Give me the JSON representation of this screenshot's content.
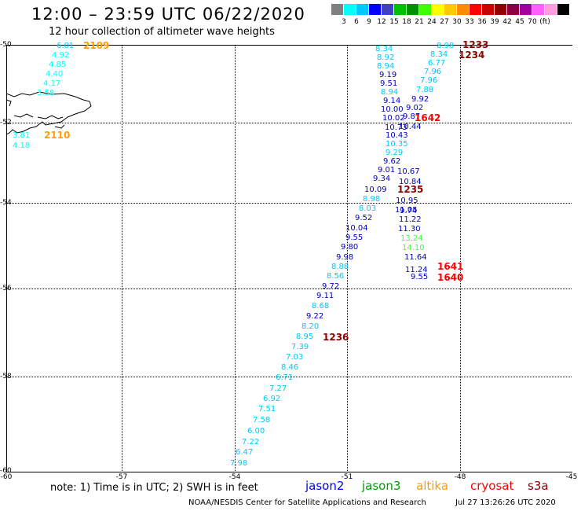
{
  "header": {
    "title": "12:00 – 23:59 UTC 06/22/2020",
    "subtitle": "12 hour collection of altimeter wave heights"
  },
  "legend": {
    "colors": [
      "#808080",
      "#00ffff",
      "#00c8ff",
      "#0000ff",
      "#4040c0",
      "#00c000",
      "#009000",
      "#40ff00",
      "#ffff00",
      "#ffc800",
      "#ff8c00",
      "#ff0000",
      "#c80000",
      "#900000",
      "#8b0040",
      "#a000a0",
      "#ff60ff",
      "#ff9ce0",
      "#000000"
    ],
    "ticks": [
      "3",
      "6",
      "9",
      "12",
      "15",
      "18",
      "21",
      "24",
      "27",
      "30",
      "33",
      "36",
      "39",
      "42",
      "45",
      "70",
      "(ft)"
    ]
  },
  "axes": {
    "y_labels": [
      "-50",
      "-52",
      "-54",
      "-56",
      "-58",
      "-60"
    ],
    "x_labels": [
      "-60",
      "-57",
      "-54",
      "-51",
      "-48",
      "-45"
    ]
  },
  "values": [
    {
      "t": "6.01",
      "c": "#00c8ff"
    },
    {
      "t": "4.92",
      "c": "#00ffff"
    },
    {
      "t": "4.85",
      "c": "#00ffff"
    },
    {
      "t": "4.40",
      "c": "#00ffff"
    },
    {
      "t": "4.17",
      "c": "#00ffff"
    },
    {
      "t": "3.58",
      "c": "#00ffff"
    },
    {
      "t": "3.81",
      "c": "#00ffff"
    },
    {
      "t": "4.18",
      "c": "#00ffff"
    },
    {
      "t": "8.34",
      "c": "#00c8ff"
    },
    {
      "t": "8.92",
      "c": "#00c8ff"
    },
    {
      "t": "8.94",
      "c": "#00c8ff"
    },
    {
      "t": "9.19",
      "c": "#0000c0"
    },
    {
      "t": "9.51",
      "c": "#0000c0"
    },
    {
      "t": "8.94",
      "c": "#00c8ff"
    },
    {
      "t": "9.14",
      "c": "#0000c0"
    },
    {
      "t": "10.00",
      "c": "#0000c0"
    },
    {
      "t": "10.02",
      "c": "#0000c0"
    },
    {
      "t": "10.44",
      "c": "#0000c0"
    },
    {
      "t": "10.43",
      "c": "#0000c0"
    },
    {
      "t": "10.35",
      "c": "#00c8ff"
    },
    {
      "t": "9.29",
      "c": "#00c8ff"
    },
    {
      "t": "9.62",
      "c": "#0000c0"
    },
    {
      "t": "9.01",
      "c": "#0000c0"
    },
    {
      "t": "9.34",
      "c": "#0000c0"
    },
    {
      "t": "10.09",
      "c": "#0000c0"
    },
    {
      "t": "8.98",
      "c": "#00c8ff"
    },
    {
      "t": "8.03",
      "c": "#00c8ff"
    },
    {
      "t": "9.52",
      "c": "#0000c0"
    },
    {
      "t": "10.04",
      "c": "#0000c0"
    },
    {
      "t": "9.55",
      "c": "#0000c0"
    },
    {
      "t": "9.80",
      "c": "#0000c0"
    },
    {
      "t": "9.98",
      "c": "#0000c0"
    },
    {
      "t": "8.88",
      "c": "#00c8ff"
    },
    {
      "t": "8.56",
      "c": "#00c8ff"
    },
    {
      "t": "9.72",
      "c": "#0000c0"
    },
    {
      "t": "9.11",
      "c": "#0000c0"
    },
    {
      "t": "8.68",
      "c": "#00c8ff"
    },
    {
      "t": "9.22",
      "c": "#0000c0"
    },
    {
      "t": "8.20",
      "c": "#00c8ff"
    },
    {
      "t": "8.95",
      "c": "#00c8ff"
    },
    {
      "t": "7.39",
      "c": "#00c8ff"
    },
    {
      "t": "7.03",
      "c": "#00c8ff"
    },
    {
      "t": "8.46",
      "c": "#00c8ff"
    },
    {
      "t": "6.71",
      "c": "#00c8ff"
    },
    {
      "t": "7.27",
      "c": "#00c8ff"
    },
    {
      "t": "6.92",
      "c": "#00c8ff"
    },
    {
      "t": "7.51",
      "c": "#00c8ff"
    },
    {
      "t": "7.58",
      "c": "#00c8ff"
    },
    {
      "t": "6.00",
      "c": "#00c8ff"
    },
    {
      "t": "7.22",
      "c": "#00c8ff"
    },
    {
      "t": "6.47",
      "c": "#00c8ff"
    },
    {
      "t": "7.98",
      "c": "#00c8ff"
    },
    {
      "t": "8.98",
      "c": "#00c8ff"
    },
    {
      "t": "8.34",
      "c": "#00c8ff"
    },
    {
      "t": "6.77",
      "c": "#00c8ff"
    },
    {
      "t": "7.96",
      "c": "#00c8ff"
    },
    {
      "t": "7.96",
      "c": "#00c8ff"
    },
    {
      "t": "7.88",
      "c": "#00c8ff"
    },
    {
      "t": "9.92",
      "c": "#0000c0"
    },
    {
      "t": "9.02",
      "c": "#0000c0"
    },
    {
      "t": "9.87",
      "c": "#0000c0"
    },
    {
      "t": "10.73",
      "c": "#0000c0"
    },
    {
      "t": "10.67",
      "c": "#0000c0"
    },
    {
      "t": "10.84",
      "c": "#0000c0"
    },
    {
      "t": "10.95",
      "c": "#0000c0"
    },
    {
      "t": "11.05",
      "c": "#0000c0"
    },
    {
      "t": "9.74",
      "c": "#0000c0"
    },
    {
      "t": "11.22",
      "c": "#0000c0"
    },
    {
      "t": "11.30",
      "c": "#0000c0"
    },
    {
      "t": "13.24",
      "c": "#40ff40"
    },
    {
      "t": "14.10",
      "c": "#40ff40"
    },
    {
      "t": "11.64",
      "c": "#0000c0"
    },
    {
      "t": "11.24",
      "c": "#0000c0"
    },
    {
      "t": "9.55",
      "c": "#0000c0"
    }
  ],
  "pass_times": [
    {
      "t": "2109",
      "c": "#ff9c00"
    },
    {
      "t": "2110",
      "c": "#ff9c00"
    },
    {
      "t": "1233",
      "c": "#900000"
    },
    {
      "t": "1234",
      "c": "#900000"
    },
    {
      "t": "1642",
      "c": "#ff0000"
    },
    {
      "t": "1235",
      "c": "#900000"
    },
    {
      "t": "1641",
      "c": "#ff0000"
    },
    {
      "t": "1640",
      "c": "#ff0000"
    },
    {
      "t": "1236",
      "c": "#900000"
    }
  ],
  "footer": {
    "note": "note:  1) Time is in UTC;  2) SWH is in feet",
    "satellites": [
      {
        "t": "jason2",
        "c": "#0000ff"
      },
      {
        "t": "jason3",
        "c": "#00a000"
      },
      {
        "t": "altika",
        "c": "#ff9c00"
      },
      {
        "t": "cryosat",
        "c": "#ff0000"
      },
      {
        "t": "s3a",
        "c": "#900000"
      }
    ],
    "credit": "NOAA/NESDIS Center for Satellite Applications and Research",
    "timestamp": "Jul 27 13:26:26 UTC 2020"
  }
}
